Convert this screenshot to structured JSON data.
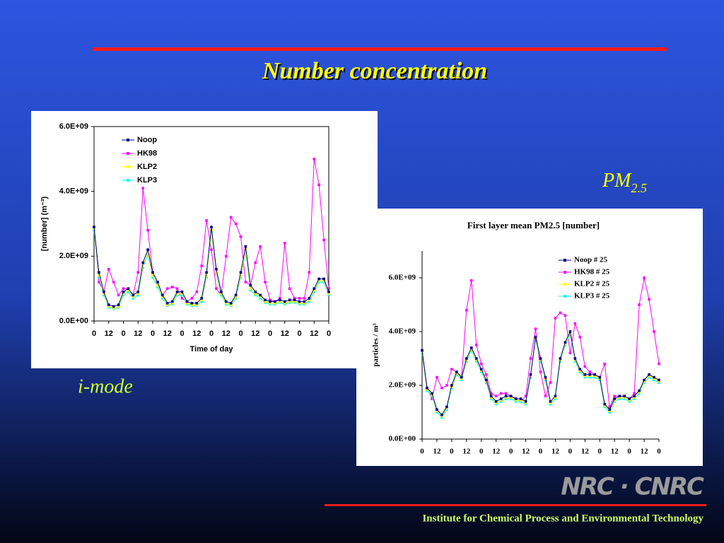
{
  "slide": {
    "title": "Number concentration",
    "pm_label": "PM",
    "pm_subscript": "2.5",
    "left_caption": "i-mode",
    "logo": "NRC · CNRC",
    "footer": "Institute for Chemical Process and Environmental Technology"
  },
  "chart_data": [
    {
      "type": "line",
      "ylabel": "[number] (m⁻³)",
      "xlabel": "Time of day",
      "legend": "top",
      "x": [
        0,
        4,
        8,
        12,
        16,
        20,
        24,
        28,
        32,
        36,
        40,
        44,
        48,
        52,
        56,
        60,
        64,
        68,
        72,
        76,
        80,
        84,
        88,
        92,
        96,
        100,
        104,
        108,
        112,
        116,
        120,
        124,
        128,
        132,
        136,
        140,
        144,
        148,
        152,
        156,
        160,
        164,
        168,
        172,
        176,
        180,
        184,
        188,
        192
      ],
      "xlim": [
        0,
        192
      ],
      "xticks": [
        0,
        12,
        {
          "value": 24,
          "label": "0"
        },
        {
          "value": 36,
          "label": "12"
        },
        {
          "value": 48,
          "label": "0"
        },
        {
          "value": 60,
          "label": "12"
        },
        {
          "value": 72,
          "label": "0"
        },
        {
          "value": 84,
          "label": "12"
        },
        {
          "value": 96,
          "label": "0"
        },
        {
          "value": 108,
          "label": "12"
        },
        {
          "value": 120,
          "label": "0"
        },
        {
          "value": 132,
          "label": "12"
        },
        {
          "value": 144,
          "label": "0"
        },
        {
          "value": 156,
          "label": "12"
        },
        {
          "value": 168,
          "label": "0"
        },
        {
          "value": 180,
          "label": "12"
        },
        {
          "value": 192,
          "label": "0"
        }
      ],
      "ylim": [
        0,
        6000000000.0
      ],
      "yticks": [
        {
          "value": 0,
          "label": "0.0E+00"
        },
        {
          "value": 2000000000.0,
          "label": "2.0E+09"
        },
        {
          "value": 4000000000.0,
          "label": "4.0E+09"
        },
        {
          "value": 6000000000.0,
          "label": "6.0E+09"
        }
      ],
      "series": [
        {
          "name": "Noop",
          "color": "#000080",
          "values": [
            2900000000.0,
            1500000000.0,
            900000000.0,
            500000000.0,
            450000000.0,
            500000000.0,
            900000000.0,
            1000000000.0,
            800000000.0,
            900000000.0,
            1800000000.0,
            2200000000.0,
            1500000000.0,
            1200000000.0,
            800000000.0,
            550000000.0,
            600000000.0,
            900000000.0,
            900000000.0,
            600000000.0,
            550000000.0,
            550000000.0,
            700000000.0,
            1500000000.0,
            2900000000.0,
            1600000000.0,
            900000000.0,
            600000000.0,
            550000000.0,
            800000000.0,
            1500000000.0,
            2300000000.0,
            1100000000.0,
            900000000.0,
            800000000.0,
            650000000.0,
            600000000.0,
            600000000.0,
            650000000.0,
            600000000.0,
            650000000.0,
            650000000.0,
            600000000.0,
            600000000.0,
            700000000.0,
            1000000000.0,
            1300000000.0,
            1300000000.0,
            900000000.0
          ]
        },
        {
          "name": "HK98",
          "color": "#ff00ff",
          "values": [
            2900000000.0,
            1200000000.0,
            900000000.0,
            1600000000.0,
            1200000000.0,
            800000000.0,
            1000000000.0,
            1000000000.0,
            800000000.0,
            1500000000.0,
            4100000000.0,
            2800000000.0,
            1500000000.0,
            1200000000.0,
            800000000.0,
            1000000000.0,
            1050000000.0,
            1000000000.0,
            700000000.0,
            600000000.0,
            700000000.0,
            900000000.0,
            1700000000.0,
            3100000000.0,
            2200000000.0,
            1000000000.0,
            800000000.0,
            2000000000.0,
            3200000000.0,
            3000000000.0,
            2600000000.0,
            1200000000.0,
            1100000000.0,
            1800000000.0,
            2300000000.0,
            1200000000.0,
            650000000.0,
            600000000.0,
            700000000.0,
            2400000000.0,
            1000000000.0,
            700000000.0,
            700000000.0,
            700000000.0,
            1500000000.0,
            5000000000.0,
            4200000000.0,
            2500000000.0,
            1000000000.0
          ]
        },
        {
          "name": "KLP2",
          "color": "#ffff00",
          "values": [
            2850000000.0,
            1400000000.0,
            850000000.0,
            450000000.0,
            400000000.0,
            450000000.0,
            850000000.0,
            950000000.0,
            750000000.0,
            850000000.0,
            1700000000.0,
            2100000000.0,
            1400000000.0,
            1100000000.0,
            750000000.0,
            500000000.0,
            550000000.0,
            850000000.0,
            850000000.0,
            550000000.0,
            500000000.0,
            500000000.0,
            650000000.0,
            1400000000.0,
            2800000000.0,
            1500000000.0,
            850000000.0,
            550000000.0,
            500000000.0,
            750000000.0,
            1400000000.0,
            2200000000.0,
            1000000000.0,
            850000000.0,
            750000000.0,
            600000000.0,
            550000000.0,
            550000000.0,
            600000000.0,
            550000000.0,
            600000000.0,
            600000000.0,
            550000000.0,
            550000000.0,
            650000000.0,
            950000000.0,
            1250000000.0,
            1250000000.0,
            850000000.0
          ]
        },
        {
          "name": "KLP3",
          "color": "#00ffff",
          "values": [
            2800000000.0,
            1350000000.0,
            800000000.0,
            420000000.0,
            380000000.0,
            420000000.0,
            800000000.0,
            900000000.0,
            700000000.0,
            800000000.0,
            1650000000.0,
            2050000000.0,
            1350000000.0,
            1050000000.0,
            700000000.0,
            480000000.0,
            520000000.0,
            800000000.0,
            800000000.0,
            520000000.0,
            480000000.0,
            480000000.0,
            600000000.0,
            1350000000.0,
            2750000000.0,
            1450000000.0,
            800000000.0,
            520000000.0,
            480000000.0,
            700000000.0,
            1350000000.0,
            2150000000.0,
            950000000.0,
            800000000.0,
            700000000.0,
            570000000.0,
            520000000.0,
            520000000.0,
            570000000.0,
            520000000.0,
            570000000.0,
            570000000.0,
            520000000.0,
            520000000.0,
            600000000.0,
            900000000.0,
            1200000000.0,
            1200000000.0,
            800000000.0
          ]
        }
      ]
    },
    {
      "type": "line",
      "title": "First layer mean PM2.5 [number]",
      "ylabel": "particles / m³",
      "legend": "top",
      "x": [
        0,
        4,
        8,
        12,
        16,
        20,
        24,
        28,
        32,
        36,
        40,
        44,
        48,
        52,
        56,
        60,
        64,
        68,
        72,
        76,
        80,
        84,
        88,
        92,
        96,
        100,
        104,
        108,
        112,
        116,
        120,
        124,
        128,
        132,
        136,
        140,
        144,
        148,
        152,
        156,
        160,
        164,
        168,
        172,
        176,
        180,
        184,
        188,
        192
      ],
      "xlim": [
        0,
        192
      ],
      "xticks": [
        0,
        12,
        {
          "value": 24,
          "label": "0"
        },
        {
          "value": 36,
          "label": "12"
        },
        {
          "value": 48,
          "label": "0"
        },
        {
          "value": 60,
          "label": "12"
        },
        {
          "value": 72,
          "label": "0"
        },
        {
          "value": 84,
          "label": "12"
        },
        {
          "value": 96,
          "label": "0"
        },
        {
          "value": 108,
          "label": "12"
        },
        {
          "value": 120,
          "label": "0"
        },
        {
          "value": 132,
          "label": "12"
        },
        {
          "value": 144,
          "label": "0"
        },
        {
          "value": 156,
          "label": "12"
        },
        {
          "value": 168,
          "label": "0"
        },
        {
          "value": 180,
          "label": "12"
        },
        {
          "value": 192,
          "label": "0"
        }
      ],
      "ylim": [
        0,
        7000000000.0
      ],
      "yticks": [
        {
          "value": 0,
          "label": "0.0E+00"
        },
        {
          "value": 2000000000.0,
          "label": "2.0E+09"
        },
        {
          "value": 4000000000.0,
          "label": "4.0E+09"
        },
        {
          "value": 6000000000.0,
          "label": "6.0E+09"
        }
      ],
      "series": [
        {
          "name": "Noop # 25",
          "color": "#000080",
          "values": [
            3300000000.0,
            1900000000.0,
            1700000000.0,
            1100000000.0,
            900000000.0,
            1200000000.0,
            2000000000.0,
            2500000000.0,
            2300000000.0,
            3000000000.0,
            3400000000.0,
            3000000000.0,
            2600000000.0,
            2200000000.0,
            1600000000.0,
            1400000000.0,
            1500000000.0,
            1600000000.0,
            1600000000.0,
            1500000000.0,
            1500000000.0,
            1400000000.0,
            2400000000.0,
            3800000000.0,
            3000000000.0,
            2300000000.0,
            1400000000.0,
            1600000000.0,
            3000000000.0,
            3600000000.0,
            4000000000.0,
            3000000000.0,
            2600000000.0,
            2400000000.0,
            2400000000.0,
            2400000000.0,
            2300000000.0,
            1300000000.0,
            1100000000.0,
            1500000000.0,
            1600000000.0,
            1600000000.0,
            1500000000.0,
            1600000000.0,
            1800000000.0,
            2200000000.0,
            2400000000.0,
            2300000000.0,
            2200000000.0
          ]
        },
        {
          "name": "HK98 # 25",
          "color": "#ff00ff",
          "values": [
            3300000000.0,
            1900000000.0,
            1500000000.0,
            2300000000.0,
            1900000000.0,
            2000000000.0,
            2600000000.0,
            2500000000.0,
            2300000000.0,
            4800000000.0,
            5900000000.0,
            3500000000.0,
            2800000000.0,
            2400000000.0,
            1700000000.0,
            1600000000.0,
            1700000000.0,
            1700000000.0,
            1600000000.0,
            1500000000.0,
            1400000000.0,
            1600000000.0,
            3000000000.0,
            4100000000.0,
            2500000000.0,
            1600000000.0,
            2100000000.0,
            4500000000.0,
            4700000000.0,
            4600000000.0,
            3200000000.0,
            4300000000.0,
            3800000000.0,
            2700000000.0,
            2500000000.0,
            2400000000.0,
            2300000000.0,
            2800000000.0,
            1200000000.0,
            1600000000.0,
            1600000000.0,
            1600000000.0,
            1500000000.0,
            1700000000.0,
            5000000000.0,
            6000000000.0,
            5200000000.0,
            4000000000.0,
            2800000000.0
          ]
        },
        {
          "name": "KLP2 # 25",
          "color": "#ffff00",
          "values": [
            3250000000.0,
            1850000000.0,
            1650000000.0,
            1050000000.0,
            850000000.0,
            1150000000.0,
            1950000000.0,
            2450000000.0,
            2250000000.0,
            2950000000.0,
            3350000000.0,
            2950000000.0,
            2550000000.0,
            2150000000.0,
            1550000000.0,
            1350000000.0,
            1450000000.0,
            1550000000.0,
            1550000000.0,
            1450000000.0,
            1450000000.0,
            1350000000.0,
            2350000000.0,
            3750000000.0,
            2950000000.0,
            2250000000.0,
            1350000000.0,
            1550000000.0,
            2950000000.0,
            3550000000.0,
            3950000000.0,
            2950000000.0,
            2550000000.0,
            2350000000.0,
            2350000000.0,
            2350000000.0,
            2250000000.0,
            1250000000.0,
            1050000000.0,
            1450000000.0,
            1550000000.0,
            1550000000.0,
            1450000000.0,
            1550000000.0,
            1750000000.0,
            2150000000.0,
            2350000000.0,
            2250000000.0,
            2150000000.0
          ]
        },
        {
          "name": "KLP3 # 25",
          "color": "#00ffff",
          "values": [
            3200000000.0,
            1800000000.0,
            1600000000.0,
            1000000000.0,
            800000000.0,
            1100000000.0,
            1900000000.0,
            2400000000.0,
            2200000000.0,
            2900000000.0,
            3300000000.0,
            2900000000.0,
            2500000000.0,
            2100000000.0,
            1500000000.0,
            1300000000.0,
            1400000000.0,
            1500000000.0,
            1500000000.0,
            1400000000.0,
            1400000000.0,
            1300000000.0,
            2300000000.0,
            3700000000.0,
            2900000000.0,
            2200000000.0,
            1300000000.0,
            1500000000.0,
            2900000000.0,
            3500000000.0,
            3900000000.0,
            2900000000.0,
            2500000000.0,
            2300000000.0,
            2300000000.0,
            2300000000.0,
            2200000000.0,
            1200000000.0,
            1000000000.0,
            1400000000.0,
            1500000000.0,
            1500000000.0,
            1400000000.0,
            1500000000.0,
            1700000000.0,
            2100000000.0,
            2300000000.0,
            2200000000.0,
            2100000000.0
          ]
        }
      ]
    }
  ]
}
